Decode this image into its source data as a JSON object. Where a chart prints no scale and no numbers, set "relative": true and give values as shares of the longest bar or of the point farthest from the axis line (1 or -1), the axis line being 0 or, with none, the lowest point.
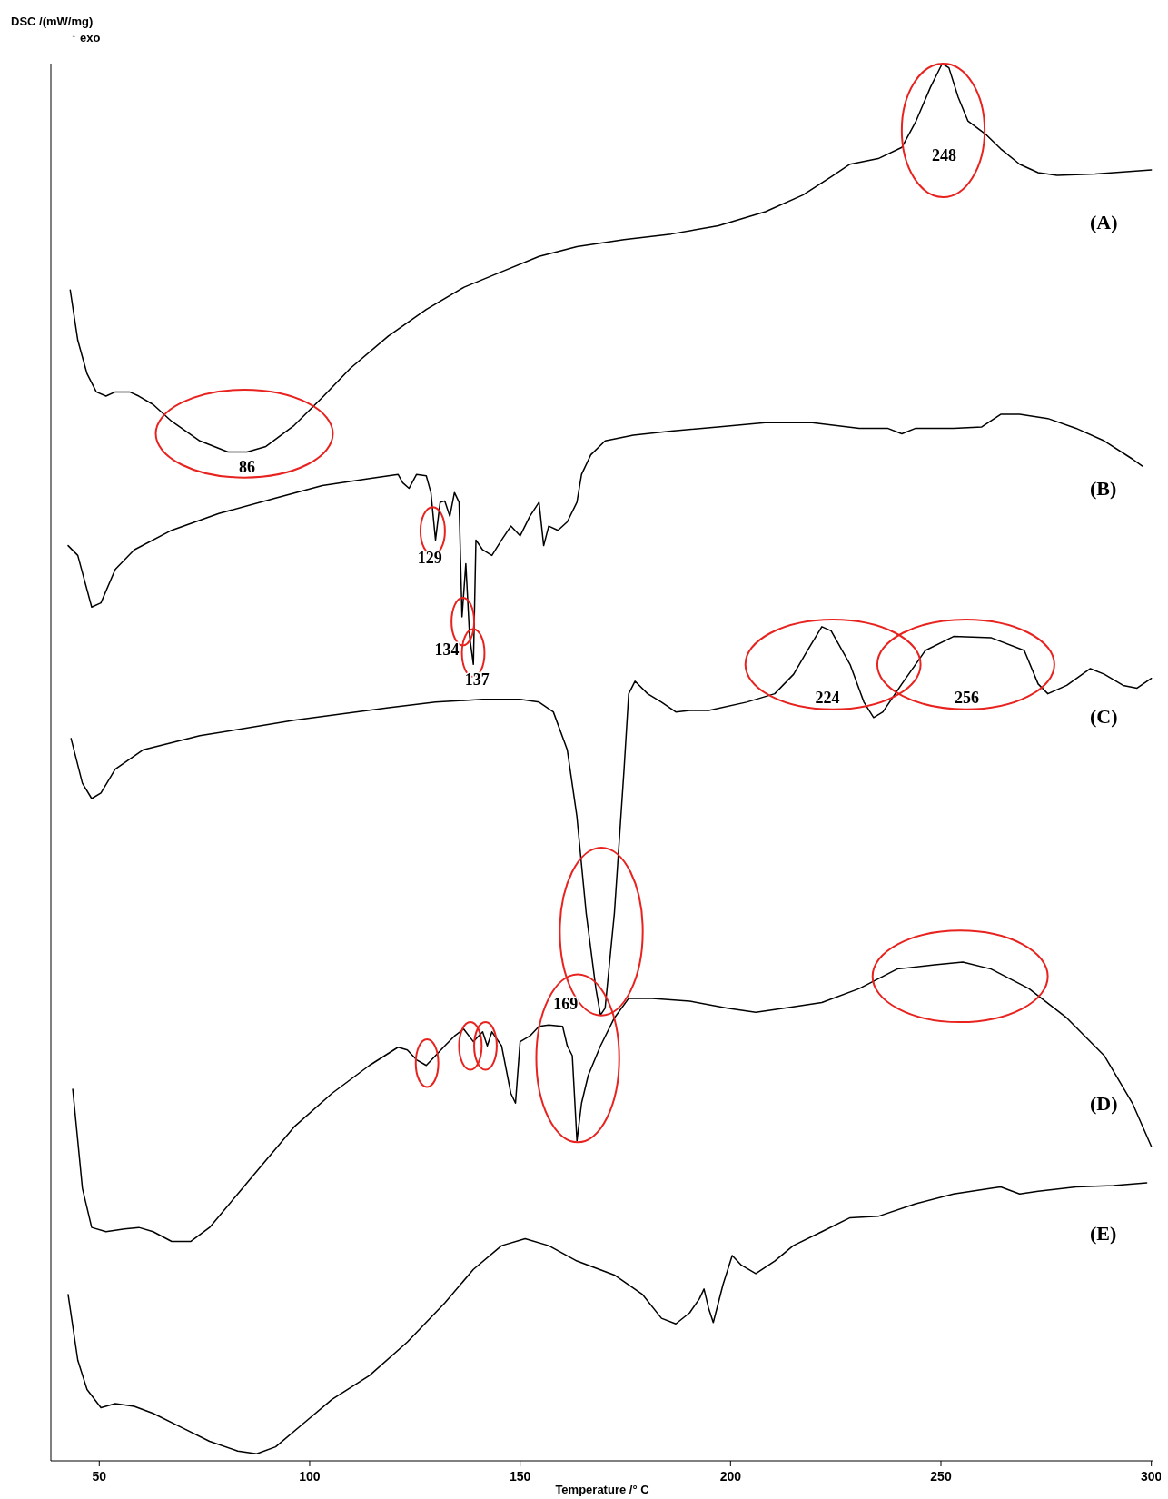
{
  "chart_data": {
    "type": "line",
    "relative": true,
    "xlabel": "Temperature /° C",
    "ylabel": "DSC /(mW/mg)",
    "xlim": [
      38.5,
      300.5
    ],
    "xticks": [
      50,
      100,
      150,
      200,
      250,
      300
    ],
    "annotations": [
      "↑ exo",
      "248",
      "86",
      "129",
      "134",
      "137",
      "224",
      "256",
      "169"
    ],
    "series": [
      {
        "name": "(A)",
        "color": "#000000",
        "x": [
          43.1,
          44.9,
          47.1,
          49.3,
          51.6,
          53.8,
          57.2,
          59.4,
          62.8,
          67.2,
          73.9,
          80.6,
          85.1,
          89.6,
          96.3,
          103,
          109.7,
          118.7,
          127.7,
          136.7,
          145.6,
          154.5,
          163.5,
          174.7,
          185.9,
          197.1,
          208.3,
          217.2,
          223.9,
          228.4,
          235.1,
          240.7,
          244.1,
          247.5,
          250.3,
          251.9,
          254.1,
          256.4,
          260.8,
          264.2,
          268.7,
          273.1,
          277.6,
          286.6,
          300
        ],
        "values": [
          0.838,
          0.802,
          0.778,
          0.765,
          0.762,
          0.765,
          0.765,
          0.762,
          0.756,
          0.744,
          0.73,
          0.722,
          0.722,
          0.726,
          0.741,
          0.761,
          0.782,
          0.805,
          0.824,
          0.84,
          0.851,
          0.862,
          0.869,
          0.874,
          0.878,
          0.884,
          0.894,
          0.906,
          0.919,
          0.928,
          0.932,
          0.94,
          0.959,
          0.983,
          1,
          0.997,
          0.976,
          0.959,
          0.949,
          0.939,
          0.928,
          0.922,
          0.92,
          0.921,
          0.924
        ]
      },
      {
        "name": "(B)",
        "color": "#000000",
        "x": [
          42.6,
          44.9,
          48.2,
          50.4,
          53.8,
          58.3,
          67.2,
          78.4,
          91.9,
          103,
          114.2,
          121,
          122.1,
          123.6,
          125.4,
          127.7,
          128.8,
          129.9,
          131,
          132.1,
          133.3,
          134.4,
          135.5,
          136.2,
          137.1,
          138,
          138.9,
          139.5,
          141.1,
          143.3,
          145.6,
          147.8,
          150,
          152.3,
          154.5,
          155.6,
          156.8,
          159,
          161.2,
          163.5,
          164.6,
          166.8,
          170.2,
          176.9,
          185.9,
          197,
          208.2,
          219.4,
          230.6,
          237.3,
          240.7,
          244,
          253,
          259.7,
          264.2,
          268.7,
          275.4,
          282.1,
          288.8,
          295.5,
          297.8
        ],
        "values": [
          0.655,
          0.648,
          0.611,
          0.614,
          0.638,
          0.652,
          0.666,
          0.678,
          0.689,
          0.698,
          0.703,
          0.706,
          0.7,
          0.696,
          0.706,
          0.705,
          0.693,
          0.659,
          0.686,
          0.687,
          0.676,
          0.693,
          0.686,
          0.604,
          0.642,
          0.59,
          0.57,
          0.659,
          0.652,
          0.648,
          0.659,
          0.669,
          0.662,
          0.676,
          0.686,
          0.655,
          0.669,
          0.666,
          0.672,
          0.686,
          0.706,
          0.72,
          0.73,
          0.734,
          0.737,
          0.74,
          0.743,
          0.743,
          0.739,
          0.739,
          0.735,
          0.739,
          0.739,
          0.74,
          0.749,
          0.749,
          0.746,
          0.739,
          0.73,
          0.717,
          0.712
        ]
      },
      {
        "name": "(C)",
        "color": "#000000",
        "x": [
          43.3,
          46,
          48.2,
          50.4,
          53.8,
          60.5,
          73.9,
          96.3,
          118.7,
          129.9,
          141.1,
          150,
          154.5,
          157.9,
          161.2,
          163.5,
          165.7,
          168,
          169.1,
          170.2,
          172.4,
          174.7,
          175.8,
          177.3,
          180.3,
          183.6,
          187,
          190.3,
          194.8,
          203.8,
          210.5,
          215,
          218.3,
          221.7,
          223.9,
          228.4,
          231.7,
          234,
          236.2,
          240.7,
          246.3,
          253,
          262,
          269.8,
          273.1,
          275.4,
          279.9,
          285.5,
          288.8,
          293.3,
          296.6,
          300
        ],
        "values": [
          0.517,
          0.485,
          0.474,
          0.478,
          0.495,
          0.509,
          0.519,
          0.53,
          0.539,
          0.543,
          0.545,
          0.545,
          0.543,
          0.536,
          0.509,
          0.461,
          0.392,
          0.338,
          0.319,
          0.324,
          0.392,
          0.495,
          0.549,
          0.558,
          0.549,
          0.543,
          0.536,
          0.537,
          0.537,
          0.543,
          0.549,
          0.563,
          0.58,
          0.597,
          0.594,
          0.57,
          0.543,
          0.532,
          0.536,
          0.556,
          0.58,
          0.59,
          0.589,
          0.58,
          0.556,
          0.549,
          0.555,
          0.567,
          0.563,
          0.555,
          0.553,
          0.56
        ]
      },
      {
        "name": "(D)",
        "color": "#000000",
        "x": [
          43.7,
          46,
          48.2,
          51.6,
          56,
          59.4,
          62.8,
          67.2,
          71.7,
          76.2,
          82.9,
          89.6,
          96.3,
          105.3,
          114.2,
          121,
          123.2,
          125.4,
          127.7,
          129.9,
          132.1,
          134.4,
          136.6,
          138.9,
          141.1,
          142.2,
          143.3,
          145.6,
          147.8,
          148.9,
          150,
          152.3,
          154.5,
          156.8,
          160.1,
          161.2,
          162.4,
          163.5,
          164.6,
          166.2,
          169.1,
          172.4,
          175.8,
          181.4,
          190.3,
          199.3,
          206,
          212.7,
          221.7,
          230.6,
          239.6,
          248.5,
          255.2,
          261.9,
          270.9,
          279.9,
          288.8,
          295.5,
          300
        ],
        "values": [
          0.266,
          0.195,
          0.167,
          0.164,
          0.166,
          0.167,
          0.164,
          0.157,
          0.157,
          0.167,
          0.191,
          0.215,
          0.239,
          0.263,
          0.283,
          0.296,
          0.294,
          0.287,
          0.283,
          0.29,
          0.297,
          0.304,
          0.309,
          0.3,
          0.307,
          0.297,
          0.307,
          0.297,
          0.263,
          0.256,
          0.3,
          0.304,
          0.311,
          0.312,
          0.311,
          0.297,
          0.29,
          0.229,
          0.256,
          0.276,
          0.297,
          0.317,
          0.331,
          0.331,
          0.329,
          0.324,
          0.321,
          0.324,
          0.328,
          0.338,
          0.352,
          0.355,
          0.357,
          0.352,
          0.338,
          0.317,
          0.29,
          0.256,
          0.225
        ]
      },
      {
        "name": "(E)",
        "color": "#000000",
        "x": [
          42.6,
          44.9,
          47.1,
          50.4,
          53.8,
          58.3,
          62.8,
          69.5,
          76.2,
          82.9,
          87.4,
          91.9,
          98.6,
          105.3,
          114.2,
          123.2,
          132.1,
          138.9,
          145.6,
          151.2,
          156.8,
          163.5,
          172.4,
          179.1,
          183.6,
          187,
          190.3,
          192.6,
          193.7,
          194.8,
          195.9,
          198.2,
          200.4,
          202.6,
          206,
          210.5,
          214.9,
          221.7,
          228.4,
          235.1,
          244,
          253,
          261.9,
          264.2,
          268.7,
          273.1,
          282.1,
          291,
          298.9
        ],
        "values": [
          0.119,
          0.072,
          0.051,
          0.038,
          0.041,
          0.039,
          0.034,
          0.024,
          0.014,
          0.007,
          0.005,
          0.01,
          0.027,
          0.044,
          0.061,
          0.085,
          0.113,
          0.137,
          0.154,
          0.159,
          0.154,
          0.143,
          0.133,
          0.119,
          0.102,
          0.098,
          0.106,
          0.116,
          0.123,
          0.109,
          0.099,
          0.126,
          0.147,
          0.14,
          0.134,
          0.143,
          0.154,
          0.164,
          0.174,
          0.175,
          0.184,
          0.191,
          0.195,
          0.196,
          0.191,
          0.193,
          0.196,
          0.197,
          0.199
        ]
      }
    ]
  }
}
